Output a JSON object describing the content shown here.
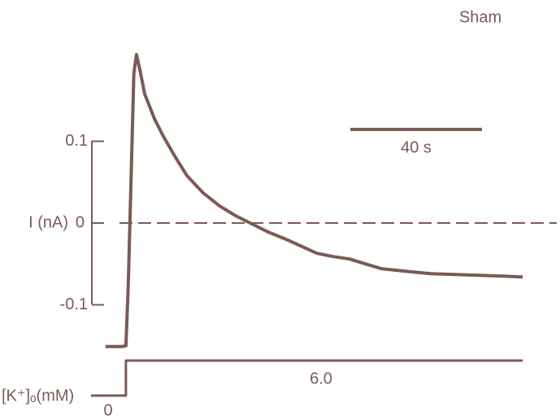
{
  "chart_data": [
    {
      "type": "line",
      "title": "Sham",
      "y_label": "I (nA)",
      "x": [
        0,
        4.9,
        6.2,
        6.9,
        7.9,
        8.6,
        9.4,
        10.4,
        11.9,
        14.8,
        17.3,
        21.0,
        24.7,
        29.6,
        34.6,
        39.5,
        44.4,
        49.4,
        54.3,
        59.3,
        64.2,
        69.1,
        74.1,
        79.0,
        84.0,
        88.9,
        93.8,
        98.8,
        106.2,
        113.6,
        121.0,
        126.7
      ],
      "series": [
        {
          "name": "Sham",
          "color": "#7b5a57",
          "values": [
            -0.151,
            -0.151,
            -0.15,
            -0.076,
            0.074,
            0.183,
            0.206,
            0.188,
            0.158,
            0.128,
            0.108,
            0.082,
            0.058,
            0.037,
            0.021,
            0.009,
            -0.001,
            -0.011,
            -0.019,
            -0.028,
            -0.037,
            -0.041,
            -0.044,
            -0.05,
            -0.056,
            -0.058,
            -0.06,
            -0.062,
            -0.063,
            -0.064,
            -0.065,
            -0.066
          ]
        }
      ],
      "xlim": [
        -4.4,
        136.3
      ],
      "ylim": [
        -0.16,
        0.21
      ],
      "yticks": [
        0.1,
        0,
        -0.1
      ],
      "scalebar": {
        "length": 40,
        "label": "40 s"
      }
    },
    {
      "type": "line",
      "y_label": "[K⁺]ₒ(mM)",
      "x": [
        -4.4,
        6.2,
        6.2,
        126.7
      ],
      "series": [
        {
          "name": "[K⁺]ₒ",
          "color": "#7b5a57",
          "values": [
            0,
            0,
            6,
            6
          ]
        }
      ],
      "xlim": [
        -4.4,
        136.3
      ],
      "ylim": [
        0,
        6
      ],
      "yticks": [
        0,
        {
          "value": 6,
          "label": "6.0"
        }
      ]
    }
  ]
}
